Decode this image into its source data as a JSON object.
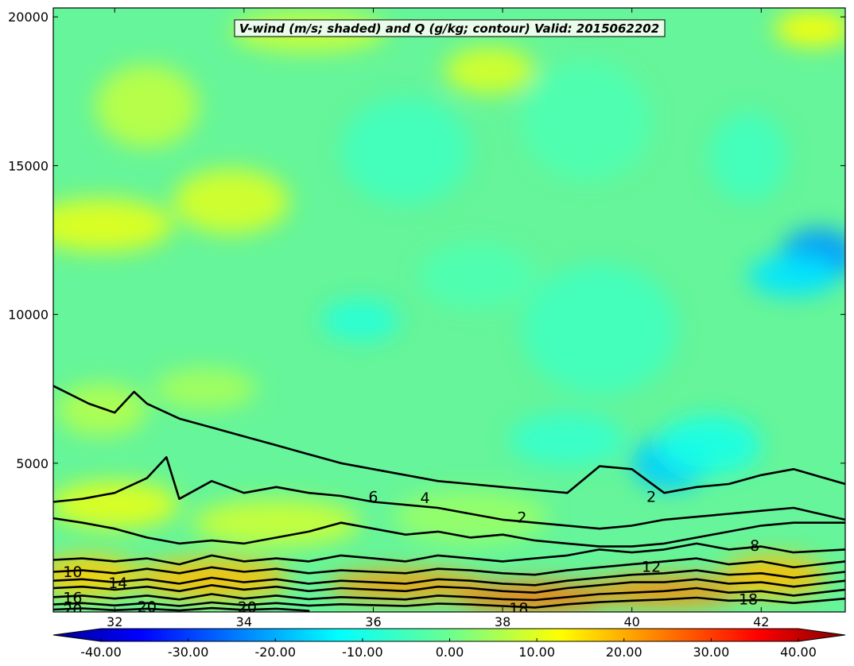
{
  "chart_data": {
    "type": "heatmap",
    "title": "V-wind (m/s; shaded) and Q (g/kg; contour) Valid: 2015062202",
    "xlabel": "",
    "ylabel": "",
    "xlim": [
      31.05,
      43.3
    ],
    "ylim": [
      0,
      20300
    ],
    "x_ticks": [
      32,
      34,
      36,
      38,
      40,
      42
    ],
    "x_tick_labels": [
      "32",
      "34",
      "36",
      "38",
      "40",
      "42"
    ],
    "y_ticks": [
      5000,
      10000,
      15000,
      20000
    ],
    "y_tick_labels": [
      "5000",
      "10000",
      "15000",
      "20000"
    ],
    "grid": false,
    "shading": {
      "variable": "V-wind (m/s)",
      "vmin": -40,
      "vmax": 40,
      "colormap": "jet",
      "colorbar_ticks": [
        -40,
        -30,
        -20,
        -10,
        0,
        10,
        20,
        30,
        40
      ],
      "colorbar_tick_labels": [
        "-40.00",
        "-30.00",
        "-20.00",
        "-10.00",
        "0.00",
        "10.00",
        "20.00",
        "30.00",
        "40.00"
      ],
      "colorbar_extend": "both",
      "fields": [
        {
          "region": "upper atmosphere (10000-20000 m)",
          "typical_value": 0,
          "range": [
            -6,
            8
          ]
        },
        {
          "region": "mid troposphere (5000-10000 m)",
          "typical_value": -4,
          "range": [
            -8,
            2
          ]
        },
        {
          "region": "jet minimum near x=42.8, z=12000",
          "typical_value": -18
        },
        {
          "region": "minimum near x=40.5, z=5000",
          "typical_value": -14
        },
        {
          "region": "boundary layer (0-2000 m)",
          "typical_value": 12,
          "range": [
            6,
            22
          ]
        }
      ]
    },
    "contours": {
      "variable": "Q (g/kg)",
      "levels": [
        2,
        4,
        6,
        8,
        10,
        12,
        14,
        16,
        18,
        20
      ],
      "lines": [
        {
          "level": 2,
          "x": [
            31.05,
            31.6,
            32.0,
            32.3,
            32.5,
            33.0,
            33.5,
            34.0,
            34.5,
            35.0,
            35.5,
            36.0,
            36.5,
            37.0,
            37.5,
            38.0,
            38.5,
            39.0,
            39.5,
            40.0,
            40.5,
            41.0,
            41.5,
            42.0,
            42.5,
            43.3
          ],
          "y": [
            7600,
            7000,
            6700,
            7400,
            7000,
            6500,
            6200,
            5900,
            5600,
            5300,
            5000,
            4800,
            4600,
            4400,
            4300,
            4200,
            4100,
            4000,
            4900,
            4800,
            4000,
            4200,
            4300,
            4600,
            4800,
            4300
          ]
        },
        {
          "level": 4,
          "x": [
            31.05,
            31.5,
            32.0,
            32.5,
            32.8,
            33.0,
            33.5,
            34.0,
            34.5,
            35.0,
            35.5,
            36.0,
            36.5,
            37.0,
            37.5,
            38.0,
            38.5,
            39.0,
            39.5,
            40.0,
            40.5,
            41.0,
            41.5,
            42.0,
            42.5,
            43.3
          ],
          "y": [
            3700,
            3800,
            4000,
            4500,
            5200,
            3800,
            4400,
            4000,
            4200,
            4000,
            3900,
            3700,
            3600,
            3500,
            3300,
            3100,
            3000,
            2900,
            2800,
            2900,
            3100,
            3200,
            3300,
            3400,
            3500,
            3100
          ]
        },
        {
          "level": 6,
          "x": [
            31.05,
            31.5,
            32.0,
            32.5,
            33.0,
            33.5,
            34.0,
            34.5,
            35.0,
            35.5,
            36.0,
            36.5,
            37.0,
            37.5,
            38.0,
            38.5,
            39.0,
            39.5,
            40.0,
            40.5,
            41.0,
            41.5,
            42.0,
            42.5,
            43.3
          ],
          "y": [
            3150,
            3000,
            2800,
            2500,
            2300,
            2400,
            2300,
            2500,
            2700,
            3000,
            2800,
            2600,
            2700,
            2500,
            2600,
            2400,
            2300,
            2200,
            2200,
            2300,
            2500,
            2700,
            2900,
            3000,
            3000
          ]
        },
        {
          "level": 8,
          "x": [
            31.05,
            31.5,
            32.0,
            32.5,
            33.0,
            33.5,
            34.0,
            34.5,
            35.0,
            35.5,
            36.0,
            36.5,
            37.0,
            37.5,
            38.0,
            38.5,
            39.0,
            39.5,
            40.0,
            40.5,
            41.0,
            41.5,
            42.0,
            42.5,
            43.3
          ],
          "y": [
            1750,
            1800,
            1700,
            1800,
            1600,
            1900,
            1700,
            1800,
            1700,
            1900,
            1800,
            1700,
            1900,
            1800,
            1700,
            1800,
            1900,
            2100,
            2000,
            2100,
            2300,
            2100,
            2200,
            2000,
            2100
          ]
        },
        {
          "level": 10,
          "x": [
            31.05,
            31.5,
            32.0,
            32.5,
            33.0,
            33.5,
            34.0,
            34.5,
            35.0,
            35.5,
            36.0,
            36.5,
            37.0,
            37.5,
            38.0,
            38.5,
            39.0,
            39.5,
            40.0,
            40.5,
            41.0,
            41.5,
            42.0,
            42.5,
            43.3
          ],
          "y": [
            1350,
            1400,
            1300,
            1450,
            1300,
            1500,
            1350,
            1450,
            1300,
            1400,
            1350,
            1300,
            1450,
            1400,
            1300,
            1250,
            1400,
            1500,
            1600,
            1700,
            1800,
            1600,
            1700,
            1500,
            1700
          ]
        },
        {
          "level": 12,
          "x": [
            31.05,
            31.5,
            32.0,
            32.5,
            33.0,
            33.5,
            34.0,
            34.5,
            35.0,
            35.5,
            36.0,
            36.5,
            37.0,
            37.5,
            38.0,
            38.5,
            39.0,
            39.5,
            40.0,
            40.5,
            41.0,
            41.5,
            42.0,
            42.5,
            43.3
          ],
          "y": [
            1050,
            1100,
            1000,
            1100,
            950,
            1150,
            1000,
            1100,
            950,
            1050,
            1000,
            950,
            1100,
            1050,
            950,
            900,
            1050,
            1150,
            1250,
            1300,
            1400,
            1250,
            1300,
            1150,
            1350
          ]
        },
        {
          "level": 14,
          "x": [
            31.05,
            31.5,
            32.0,
            32.5,
            33.0,
            33.5,
            34.0,
            34.5,
            35.0,
            35.5,
            36.0,
            36.5,
            37.0,
            37.5,
            38.0,
            38.5,
            39.0,
            39.5,
            40.0,
            40.5,
            41.0,
            41.5,
            42.0,
            42.5,
            43.3
          ],
          "y": [
            800,
            850,
            750,
            850,
            700,
            900,
            750,
            850,
            700,
            800,
            750,
            700,
            850,
            800,
            700,
            650,
            800,
            900,
            1000,
            1000,
            1100,
            950,
            1000,
            850,
            1050
          ]
        },
        {
          "level": 16,
          "x": [
            31.05,
            31.5,
            32.0,
            32.5,
            33.0,
            33.5,
            34.0,
            34.5,
            35.0,
            35.5,
            36.0,
            36.5,
            37.0,
            37.5,
            38.0,
            38.5,
            39.0,
            39.5,
            40.0,
            40.5,
            41.0,
            41.5,
            42.0,
            42.5,
            43.3
          ],
          "y": [
            500,
            550,
            450,
            550,
            420,
            600,
            450,
            550,
            430,
            500,
            460,
            420,
            550,
            500,
            430,
            400,
            500,
            600,
            650,
            700,
            800,
            650,
            700,
            550,
            750
          ]
        },
        {
          "level": 18,
          "x": [
            31.05,
            31.5,
            32.0,
            32.5,
            33.0,
            33.5,
            34.0,
            34.5,
            35.0,
            35.5,
            36.0,
            36.5,
            37.0,
            37.5,
            38.0,
            38.5,
            39.0,
            39.5,
            40.0,
            40.5,
            41.0,
            41.5,
            42.0,
            42.5,
            43.3
          ],
          "y": [
            250,
            300,
            220,
            300,
            200,
            320,
            230,
            300,
            210,
            260,
            230,
            200,
            280,
            250,
            200,
            150,
            260,
            330,
            380,
            420,
            480,
            380,
            400,
            300,
            450
          ]
        },
        {
          "level": 20,
          "x": [
            31.05,
            31.5,
            32.0,
            32.5,
            33.0,
            33.5,
            34.0,
            34.5,
            35.0
          ],
          "y": [
            80,
            120,
            60,
            110,
            50,
            130,
            70,
            110,
            40
          ]
        }
      ],
      "labels": [
        {
          "text": "2",
          "x": 40.3,
          "y": 3850
        },
        {
          "text": "2",
          "x": 38.3,
          "y": 3150
        },
        {
          "text": "4",
          "x": 36.8,
          "y": 3800
        },
        {
          "text": "6",
          "x": 36.0,
          "y": 3850
        },
        {
          "text": "8",
          "x": 41.9,
          "y": 2200
        },
        {
          "text": "10",
          "x": 31.35,
          "y": 1320
        },
        {
          "text": "12",
          "x": 40.3,
          "y": 1500
        },
        {
          "text": "14",
          "x": 32.05,
          "y": 950
        },
        {
          "text": "16",
          "x": 31.35,
          "y": 450
        },
        {
          "text": "18",
          "x": 41.8,
          "y": 400
        },
        {
          "text": "18",
          "x": 38.25,
          "y": 100
        },
        {
          "text": "20",
          "x": 32.5,
          "y": 150
        },
        {
          "text": "20",
          "x": 34.05,
          "y": 130
        },
        {
          "text": "20",
          "x": 31.35,
          "y": 60
        }
      ]
    }
  }
}
